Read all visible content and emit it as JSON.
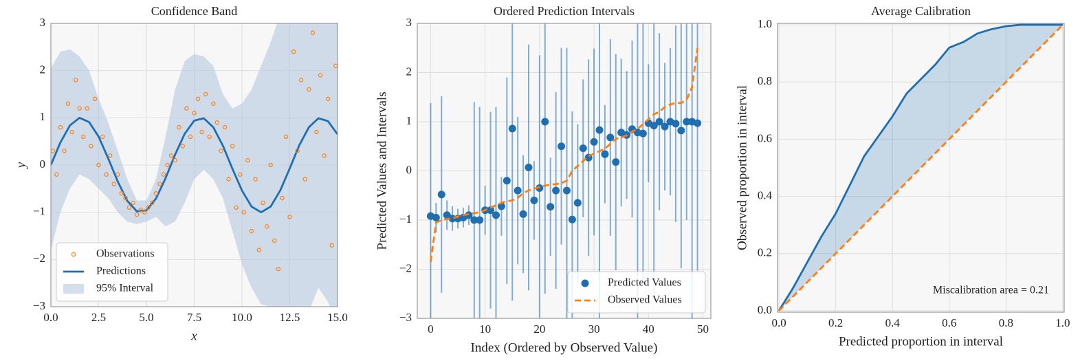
{
  "chart_data": [
    {
      "type": "line",
      "title": "Confidence Band",
      "xlabel": "x",
      "ylabel": "y",
      "xlim": [
        0,
        15
      ],
      "ylim": [
        -3,
        3
      ],
      "xticks": [
        {
          "value": 0,
          "label": "0.0"
        },
        2.5,
        {
          "value": 5,
          "label": "5.0"
        },
        7.5,
        {
          "value": 10,
          "label": "10.0"
        },
        12.5,
        {
          "value": 15,
          "label": "15.0"
        }
      ],
      "yticks": [
        {
          "value": -3,
          "label": "−3"
        },
        {
          "value": -2,
          "label": "−2"
        },
        {
          "value": -1,
          "label": "−1"
        },
        0,
        1,
        2,
        3
      ],
      "grid": true,
      "legend": "lower left",
      "series": [
        {
          "name": "Observations",
          "kind": "scatter",
          "color": "#ff7f0e",
          "x": [
            0.1,
            0.3,
            0.5,
            0.7,
            0.9,
            1.1,
            1.3,
            1.5,
            1.7,
            1.9,
            2.1,
            2.3,
            2.5,
            2.7,
            2.9,
            3.1,
            3.3,
            3.5,
            3.7,
            3.9,
            4.1,
            4.3,
            4.5,
            4.7,
            4.9,
            5.1,
            5.3,
            5.5,
            5.7,
            5.9,
            6.1,
            6.3,
            6.5,
            6.7,
            6.9,
            7.1,
            7.3,
            7.5,
            7.7,
            7.9,
            8.1,
            8.3,
            8.5,
            8.7,
            8.9,
            9.1,
            9.3,
            9.5,
            9.7,
            9.9,
            10.1,
            10.3,
            10.5,
            10.7,
            10.9,
            11.1,
            11.3,
            11.5,
            11.7,
            11.9,
            12.1,
            12.3,
            12.5,
            12.7,
            12.9,
            13.1,
            13.3,
            13.5,
            13.7,
            13.9,
            14.1,
            14.3,
            14.5,
            14.7,
            14.9
          ],
          "values": [
            0.3,
            -0.2,
            0.8,
            0.3,
            1.3,
            0.7,
            1.8,
            1.2,
            0.6,
            1.2,
            0.4,
            1.4,
            0.0,
            0.6,
            -0.2,
            0.2,
            -0.4,
            -0.2,
            -0.6,
            -0.7,
            -0.9,
            -0.8,
            -1.05,
            -0.95,
            -1.0,
            -0.9,
            -0.8,
            -0.6,
            -0.4,
            -0.2,
            0.0,
            0.2,
            0.1,
            0.8,
            0.4,
            1.2,
            0.6,
            1.1,
            1.4,
            0.7,
            1.5,
            0.6,
            1.3,
            0.9,
            0.3,
            0.8,
            -0.3,
            0.4,
            -0.9,
            -0.2,
            -1.0,
            0.1,
            -1.4,
            -0.3,
            -1.8,
            -0.8,
            -1.3,
            0.0,
            -1.6,
            -2.2,
            -0.7,
            0.6,
            -1.1,
            2.4,
            0.3,
            1.8,
            -0.3,
            1.6,
            2.8,
            0.7,
            1.9,
            0.2,
            1.4,
            -1.7,
            2.1
          ]
        },
        {
          "name": "Predictions",
          "kind": "line",
          "color": "#1f6fb0",
          "x": [
            0,
            0.5,
            1,
            1.5,
            2,
            2.5,
            3,
            3.5,
            4,
            4.5,
            5,
            5.5,
            6,
            6.5,
            7,
            7.5,
            8,
            8.5,
            9,
            9.5,
            10,
            10.5,
            11,
            11.5,
            12,
            12.5,
            13,
            13.5,
            14,
            14.5,
            15
          ],
          "values": [
            0,
            0.48,
            0.84,
            1.0,
            0.91,
            0.6,
            0.14,
            -0.35,
            -0.76,
            -0.98,
            -0.96,
            -0.71,
            -0.28,
            0.22,
            0.66,
            0.94,
            0.99,
            0.8,
            0.41,
            -0.08,
            -0.54,
            -0.88,
            -1.0,
            -0.88,
            -0.54,
            -0.07,
            0.42,
            0.8,
            0.99,
            0.93,
            0.65
          ]
        },
        {
          "name": "95% Interval",
          "kind": "band",
          "color": "#b0c4de",
          "x": [
            0,
            0.5,
            1,
            1.5,
            2,
            2.5,
            3,
            3.5,
            4,
            4.5,
            5,
            5.5,
            6,
            6.5,
            7,
            7.5,
            8,
            8.5,
            9,
            9.5,
            10,
            10.5,
            11,
            11.5,
            12,
            12.5,
            13,
            13.5,
            14,
            14.5,
            15
          ],
          "lower": [
            -1.8,
            -1.0,
            -0.5,
            -0.2,
            -0.3,
            -0.5,
            -0.7,
            -1.0,
            -1.2,
            -1.25,
            -1.2,
            -1.1,
            -1.3,
            -1.2,
            -0.8,
            -0.3,
            -0.1,
            -0.3,
            -0.7,
            -1.4,
            -2.1,
            -2.6,
            -2.95,
            -3.0,
            -3.2,
            -3.5,
            -3.4,
            -3.1,
            -2.6,
            -2.9,
            -3.4
          ],
          "upper": [
            2.05,
            2.4,
            2.45,
            2.3,
            2.0,
            1.4,
            0.9,
            0.3,
            -0.3,
            -0.75,
            -0.75,
            -0.3,
            0.6,
            1.6,
            2.2,
            2.35,
            2.3,
            2.1,
            1.5,
            1.2,
            1.3,
            1.6,
            2.1,
            2.6,
            3.2,
            3.5,
            3.6,
            3.5,
            3.4,
            3.5,
            3.5
          ]
        }
      ]
    },
    {
      "type": "errorbar",
      "title": "Ordered Prediction Intervals",
      "xlabel": "Index (Ordered by Observed Value)",
      "ylabel": "Predicted Values and Intervals",
      "xlim": [
        -2.45,
        51.45
      ],
      "ylim": [
        -3,
        3
      ],
      "xticks": [
        0,
        10,
        20,
        30,
        40,
        50
      ],
      "yticks": [
        {
          "value": -3,
          "label": "−3"
        },
        {
          "value": -2,
          "label": "−2"
        },
        {
          "value": -1,
          "label": "−1"
        },
        0,
        1,
        2,
        3
      ],
      "grid": true,
      "legend": "lower right",
      "series": [
        {
          "name": "Predicted Values",
          "kind": "errorbar",
          "color": "#1f6fb0",
          "x": [
            0,
            1,
            2,
            3,
            4,
            5,
            6,
            7,
            8,
            9,
            10,
            11,
            12,
            13,
            14,
            15,
            16,
            17,
            18,
            19,
            20,
            21,
            22,
            23,
            24,
            25,
            26,
            27,
            28,
            29,
            30,
            31,
            32,
            33,
            34,
            35,
            36,
            37,
            38,
            39,
            40,
            41,
            42,
            43,
            44,
            45,
            46,
            47,
            48,
            49
          ],
          "values": [
            -0.92,
            -0.95,
            -0.48,
            -0.9,
            -0.97,
            -0.97,
            -0.95,
            -0.9,
            -1.0,
            -1.0,
            -0.8,
            -0.8,
            -0.9,
            -0.72,
            -0.2,
            0.86,
            -0.4,
            -0.88,
            0.07,
            -0.6,
            -0.35,
            1.0,
            -0.73,
            -0.4,
            0.5,
            -0.4,
            -0.99,
            -0.65,
            0.46,
            0.27,
            0.59,
            0.83,
            0.34,
            0.68,
            0.18,
            0.78,
            0.73,
            0.85,
            0.78,
            0.76,
            0.97,
            0.92,
            1.0,
            0.9,
            1.0,
            0.96,
            0.82,
            1.0,
            1.0,
            0.97
          ],
          "errors": [
            2.3,
            0.3,
            2.0,
            0.3,
            0.25,
            0.2,
            0.2,
            0.2,
            2.4,
            2.3,
            0.5,
            2.0,
            2.2,
            0.6,
            2.1,
            3.5,
            1.5,
            1.2,
            2.5,
            0.8,
            2.7,
            3.5,
            1.0,
            2.0,
            2.0,
            2.9,
            2.2,
            1.6,
            1.4,
            2.0,
            1.9,
            4.0,
            1.0,
            2.0,
            2.2,
            1.5,
            1.3,
            1.8,
            4.0,
            3.0,
            1.2,
            3.5,
            1.8,
            1.3,
            1.5,
            2.0,
            2.8,
            2.0,
            4.0,
            3.0
          ]
        },
        {
          "name": "Observed Values",
          "kind": "line",
          "dash": true,
          "color": "#ff7f0e",
          "x": [
            0,
            1,
            2,
            3,
            4,
            5,
            6,
            7,
            8,
            9,
            10,
            11,
            12,
            13,
            14,
            15,
            16,
            17,
            18,
            19,
            20,
            21,
            22,
            23,
            24,
            25,
            26,
            27,
            28,
            29,
            30,
            31,
            32,
            33,
            34,
            35,
            36,
            37,
            38,
            39,
            40,
            41,
            42,
            43,
            44,
            45,
            46,
            47,
            48,
            49
          ],
          "values": [
            -1.85,
            -1.05,
            -1.0,
            -0.98,
            -0.96,
            -0.93,
            -0.9,
            -0.88,
            -0.86,
            -0.84,
            -0.8,
            -0.75,
            -0.7,
            -0.65,
            -0.62,
            -0.6,
            -0.55,
            -0.45,
            -0.4,
            -0.36,
            -0.33,
            -0.3,
            -0.28,
            -0.27,
            -0.25,
            -0.2,
            0.0,
            0.1,
            0.2,
            0.3,
            0.35,
            0.4,
            0.45,
            0.55,
            0.65,
            0.68,
            0.72,
            0.8,
            0.85,
            0.95,
            1.05,
            1.15,
            1.2,
            1.3,
            1.35,
            1.38,
            1.38,
            1.45,
            1.7,
            2.5
          ]
        }
      ]
    },
    {
      "type": "line",
      "title": "Average Calibration",
      "xlabel": "Predicted proportion in interval",
      "ylabel": "Observed proportion in interval",
      "xlim": [
        -0.005,
        1.005
      ],
      "ylim": [
        -0.005,
        1.005
      ],
      "xticks": [
        {
          "value": 0,
          "label": "0.0"
        },
        0.2,
        0.4,
        0.6,
        0.8,
        {
          "value": 1,
          "label": "1.0"
        }
      ],
      "yticks": [
        {
          "value": 0,
          "label": "0.0"
        },
        0.2,
        0.4,
        0.6,
        0.8,
        {
          "value": 1,
          "label": "1.0"
        }
      ],
      "grid": true,
      "annotation": "Miscalibration area = 0.21",
      "series": [
        {
          "kind": "line",
          "fill": true,
          "color": "#1f6fb0",
          "x": [
            0,
            0.05,
            0.1,
            0.15,
            0.2,
            0.25,
            0.3,
            0.35,
            0.4,
            0.45,
            0.5,
            0.55,
            0.6,
            0.65,
            0.7,
            0.75,
            0.8,
            0.85,
            0.9,
            0.95,
            1.0
          ],
          "values": [
            0,
            0.08,
            0.17,
            0.26,
            0.34,
            0.44,
            0.54,
            0.61,
            0.68,
            0.76,
            0.81,
            0.86,
            0.92,
            0.94,
            0.97,
            0.985,
            0.995,
            1.0,
            1.0,
            1.0,
            1.0
          ]
        },
        {
          "kind": "line",
          "dash": true,
          "color": "#ff7f0e",
          "x": [
            0,
            1
          ],
          "values": [
            0,
            1
          ]
        }
      ]
    }
  ]
}
